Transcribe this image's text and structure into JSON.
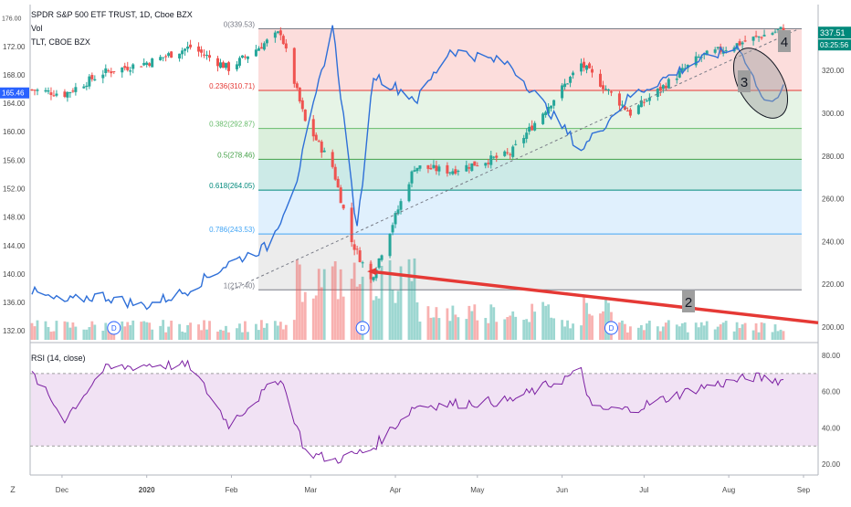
{
  "legend": {
    "main": "SPDR S&P 500 ETF TRUST, 1D, Cboe BZX",
    "volume": "Vol",
    "compare": "TLT, CBOE BZX",
    "rsi": "RSI (14, close)"
  },
  "price_tag": {
    "value": "337.51",
    "countdown": "03:25:56"
  },
  "left_tag": "165.46",
  "bottom_left": "Z",
  "colors": {
    "up": "#26a69a",
    "down": "#ef5350",
    "tlt": "#2e6fd8",
    "rsi": "#7b1fa2",
    "red_trend": "#e53935",
    "accent": "#00897b"
  },
  "chart_data": [
    {
      "type": "candlestick",
      "title": "SPDR S&P 500 ETF TRUST, 1D, Cboe BZX",
      "x_ticks": [
        "Dec",
        "2020",
        "Feb",
        "Mar",
        "Apr",
        "May",
        "Jun",
        "Jul",
        "Aug",
        "Sep"
      ],
      "y_right_ticks": [
        200,
        220,
        240,
        260,
        280,
        300,
        320,
        337.51
      ],
      "y_right_range": [
        200,
        350
      ],
      "last_price": 337.51,
      "fib_retracement": [
        {
          "level": "0",
          "price": 339.53
        },
        {
          "level": "0.236",
          "price": 310.71
        },
        {
          "level": "0.382",
          "price": 292.87
        },
        {
          "level": "0.5",
          "price": 278.46
        },
        {
          "level": "0.618",
          "price": 264.05
        },
        {
          "level": "0.786",
          "price": 243.53
        },
        {
          "level": "1",
          "price": 217.4
        }
      ],
      "fib_colors": [
        "#ef5350",
        "#81c784",
        "#4caf50",
        "#009688",
        "#64b5f6",
        "#9e9e9e"
      ],
      "ohlc_approx": [
        {
          "d": "2019-11-20",
          "c": 311
        },
        {
          "d": "2019-12-02",
          "c": 309
        },
        {
          "d": "2019-12-16",
          "c": 319
        },
        {
          "d": "2020-01-02",
          "c": 324
        },
        {
          "d": "2020-01-17",
          "c": 331
        },
        {
          "d": "2020-01-31",
          "c": 321
        },
        {
          "d": "2020-02-19",
          "c": 338
        },
        {
          "d": "2020-02-28",
          "c": 296
        },
        {
          "d": "2020-03-09",
          "c": 275
        },
        {
          "d": "2020-03-16",
          "c": 240
        },
        {
          "d": "2020-03-23",
          "c": 222
        },
        {
          "d": "2020-04-08",
          "c": 275
        },
        {
          "d": "2020-04-21",
          "c": 273
        },
        {
          "d": "2020-05-13",
          "c": 281
        },
        {
          "d": "2020-06-08",
          "c": 323
        },
        {
          "d": "2020-06-26",
          "c": 300
        },
        {
          "d": "2020-07-21",
          "c": 326
        },
        {
          "d": "2020-08-10",
          "c": 335
        },
        {
          "d": "2020-08-21",
          "c": 339.5
        }
      ],
      "annotations": [
        "2",
        "3",
        "4"
      ]
    },
    {
      "type": "line",
      "name": "TLT, CBOE BZX",
      "y_left_ticks": [
        132,
        136,
        140,
        144,
        148,
        152,
        156,
        160,
        164,
        168,
        172,
        176
      ],
      "y_left_range": [
        131,
        177.5
      ],
      "last_value": 165.46,
      "points": [
        {
          "d": "2019-11-20",
          "v": 137.5
        },
        {
          "d": "2019-12-01",
          "v": 136.0
        },
        {
          "d": "2019-12-15",
          "v": 137.0
        },
        {
          "d": "2019-12-31",
          "v": 135.5
        },
        {
          "d": "2020-01-15",
          "v": 137.5
        },
        {
          "d": "2020-01-31",
          "v": 141.5
        },
        {
          "d": "2020-02-15",
          "v": 144.0
        },
        {
          "d": "2020-02-25",
          "v": 153.5
        },
        {
          "d": "2020-03-09",
          "v": 175.0
        },
        {
          "d": "2020-03-18",
          "v": 146.0
        },
        {
          "d": "2020-03-24",
          "v": 168.0
        },
        {
          "d": "2020-04-09",
          "v": 164.5
        },
        {
          "d": "2020-04-21",
          "v": 171.5
        },
        {
          "d": "2020-05-13",
          "v": 169.5
        },
        {
          "d": "2020-06-08",
          "v": 157.5
        },
        {
          "d": "2020-06-26",
          "v": 165.0
        },
        {
          "d": "2020-07-21",
          "v": 170.0
        },
        {
          "d": "2020-08-05",
          "v": 172.0
        },
        {
          "d": "2020-08-14",
          "v": 164.0
        },
        {
          "d": "2020-08-21",
          "v": 166.0
        }
      ]
    },
    {
      "type": "bar",
      "name": "Vol",
      "note": "volume histogram colored by candle direction",
      "dividend_markers": [
        "D",
        "D",
        "D",
        "D"
      ]
    },
    {
      "type": "line",
      "name": "RSI (14, close)",
      "y_ticks": [
        20,
        40,
        60,
        80
      ],
      "y_range": [
        15,
        82
      ],
      "bands": [
        30,
        70
      ],
      "points": [
        {
          "d": "2019-11-20",
          "v": 70
        },
        {
          "d": "2019-12-02",
          "v": 45
        },
        {
          "d": "2019-12-16",
          "v": 72
        },
        {
          "d": "2020-01-02",
          "v": 75
        },
        {
          "d": "2020-01-17",
          "v": 74
        },
        {
          "d": "2020-01-31",
          "v": 42
        },
        {
          "d": "2020-02-19",
          "v": 68
        },
        {
          "d": "2020-02-28",
          "v": 27
        },
        {
          "d": "2020-03-09",
          "v": 22
        },
        {
          "d": "2020-03-23",
          "v": 28
        },
        {
          "d": "2020-04-08",
          "v": 52
        },
        {
          "d": "2020-05-13",
          "v": 55
        },
        {
          "d": "2020-06-08",
          "v": 71
        },
        {
          "d": "2020-06-12",
          "v": 50
        },
        {
          "d": "2020-06-26",
          "v": 50
        },
        {
          "d": "2020-07-21",
          "v": 62
        },
        {
          "d": "2020-08-10",
          "v": 68
        },
        {
          "d": "2020-08-21",
          "v": 66
        }
      ]
    }
  ]
}
